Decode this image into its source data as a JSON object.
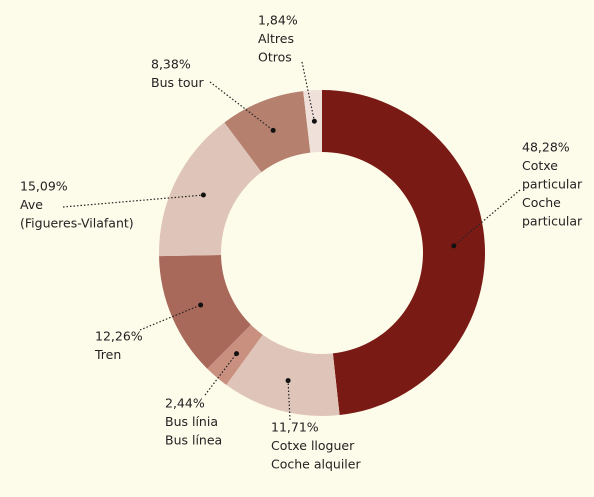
{
  "chart_data": {
    "type": "donut",
    "categories": [
      [
        "Cotxe",
        "particular",
        "Coche",
        "particular"
      ],
      [
        "Cotxe lloguer",
        "Coche alquiler"
      ],
      [
        "Bus línia",
        "Bus línea"
      ],
      [
        "Tren"
      ],
      [
        "Ave",
        "(Figueres-Vilafant)"
      ],
      [
        "Bus tour"
      ],
      [
        "Altres",
        "Otros"
      ]
    ],
    "values": [
      48.28,
      11.71,
      2.44,
      12.26,
      15.09,
      8.38,
      1.84
    ],
    "value_labels": [
      "48,28%",
      "11,71%",
      "2,44%",
      "12,26%",
      "15,09%",
      "8,38%",
      "1,84%"
    ],
    "colors": [
      "#7a1a14",
      "#dfc5b9",
      "#c9907f",
      "#a8685a",
      "#dfc5b9",
      "#b5806e",
      "#efe0da"
    ]
  }
}
